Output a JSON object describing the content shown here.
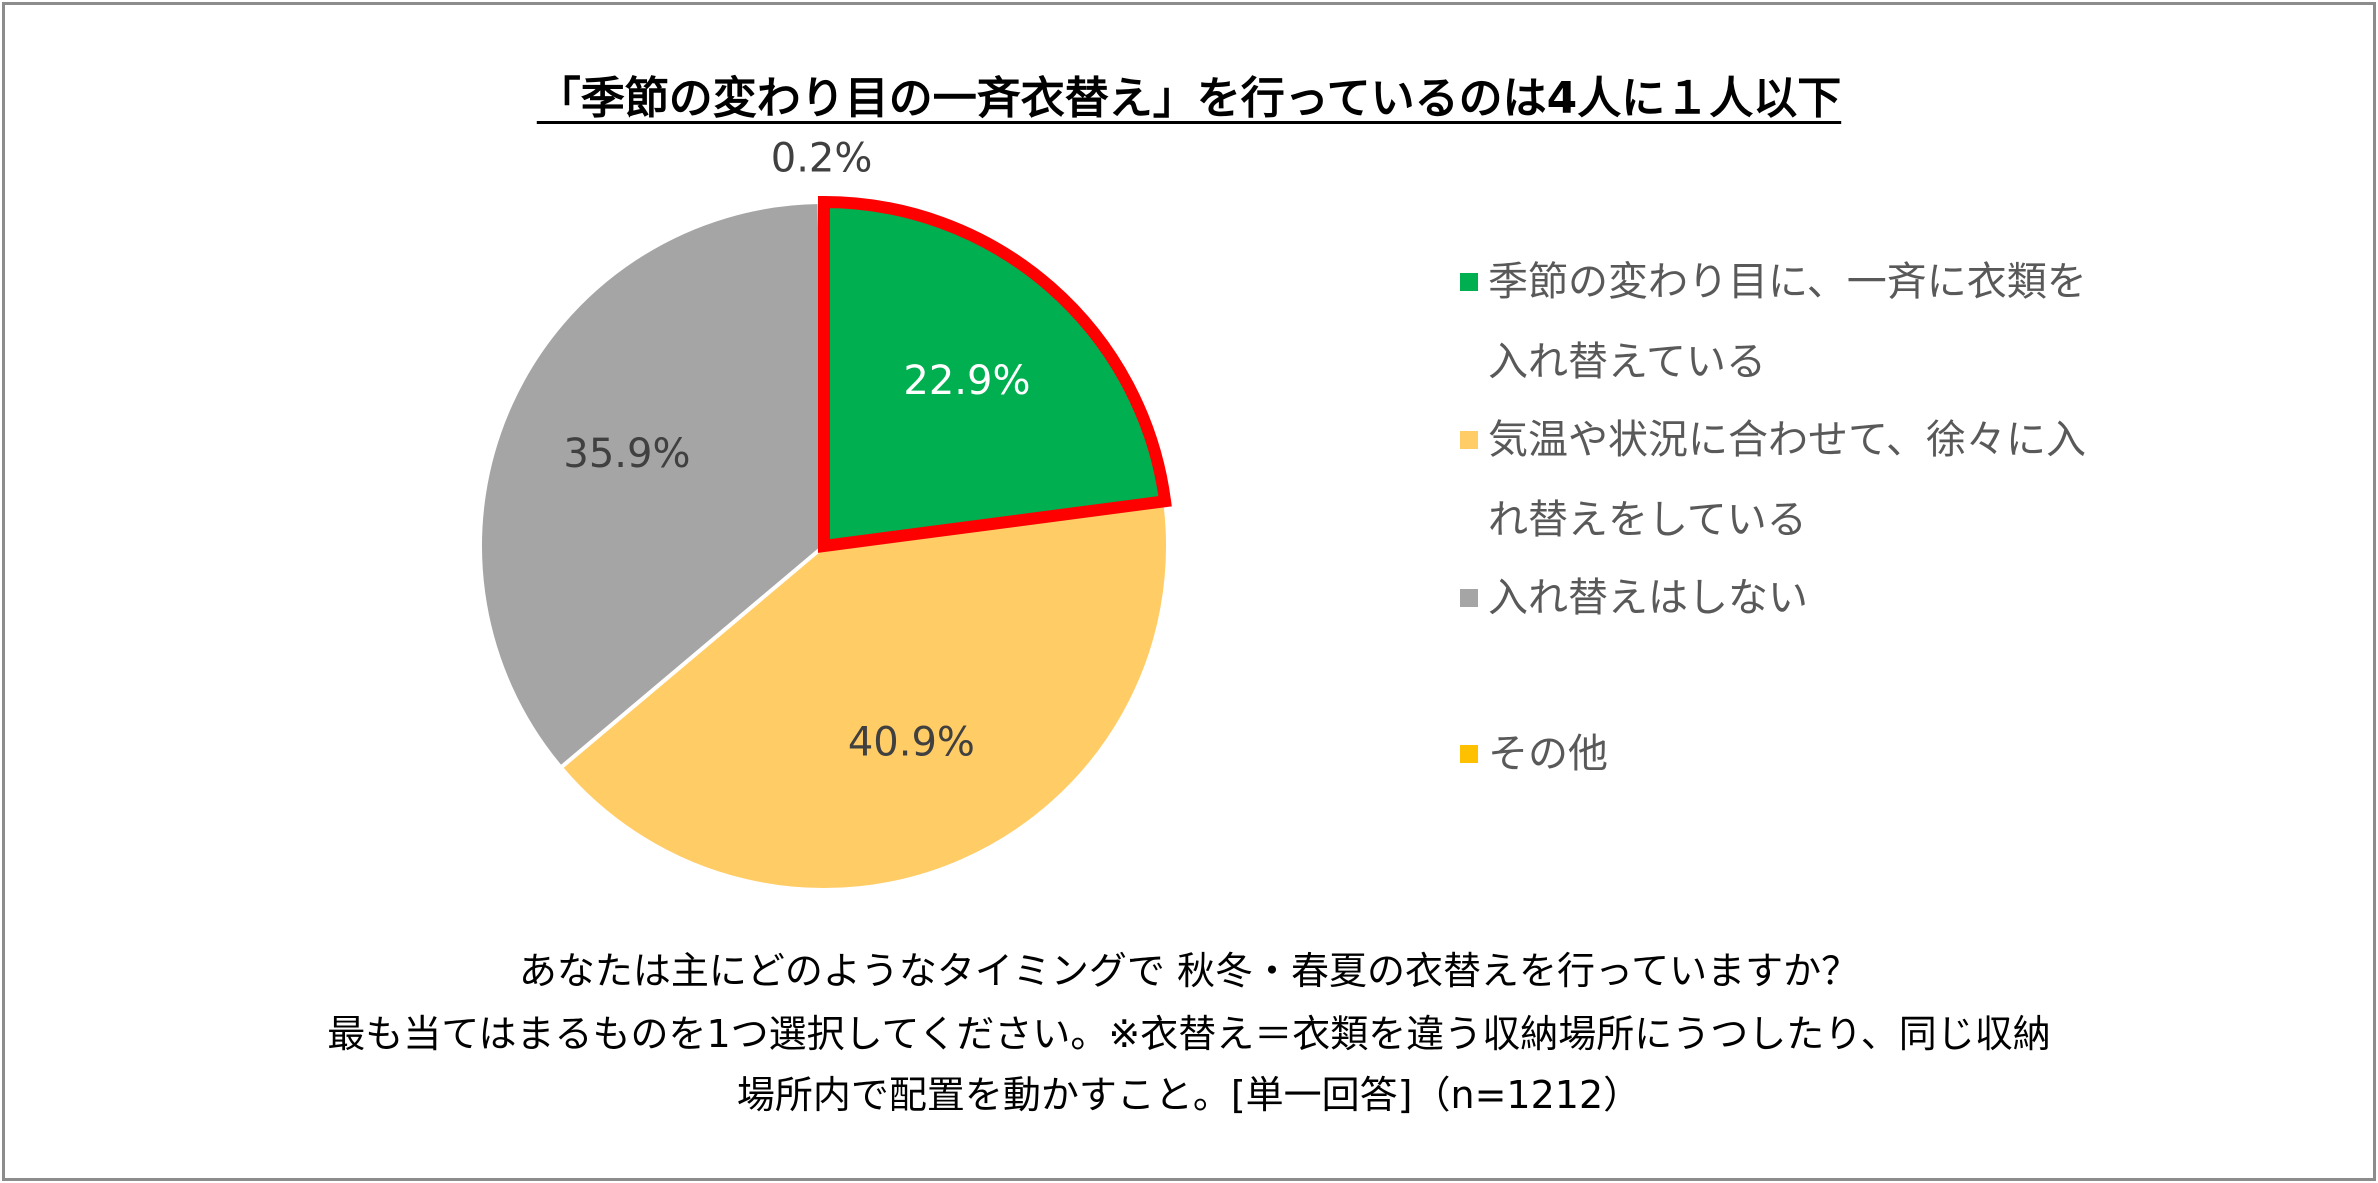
{
  "chart_data": {
    "type": "pie",
    "title": "「季節の変わり目の一斉衣替え」を行っているのは4人に１人以下",
    "categories": [
      "季節の変わり目に、一斉に衣類を入れ替えている",
      "気温や状況に合わせて、徐々に入れ替えをしている",
      "入れ替えはしない",
      "その他"
    ],
    "values": [
      22.9,
      40.9,
      35.9,
      0.2
    ],
    "value_labels": [
      "22.9%",
      "40.9%",
      "35.9%",
      "0.2%"
    ],
    "colors": [
      "#00B050",
      "#FFCC66",
      "#A5A5A5",
      "#FFC000"
    ],
    "edgecolors": [
      "#FF0000",
      "#FFFFFF",
      "#FFFFFF",
      "#FFFFFF"
    ],
    "label_colors": [
      "#FFFFFF",
      "#404040",
      "#404040",
      "#404040"
    ],
    "legend": "right",
    "caption": [
      "あなたは主にどのようなタイミングで 秋冬・春夏の衣替えを行っていますか？",
      "最も当てはまるものを1つ選択してください。※衣替え＝衣類を違う収納場所にうつしたり、同じ収納",
      "場所内で配置を動かすこと。[単一回答]（n=1212）"
    ]
  }
}
